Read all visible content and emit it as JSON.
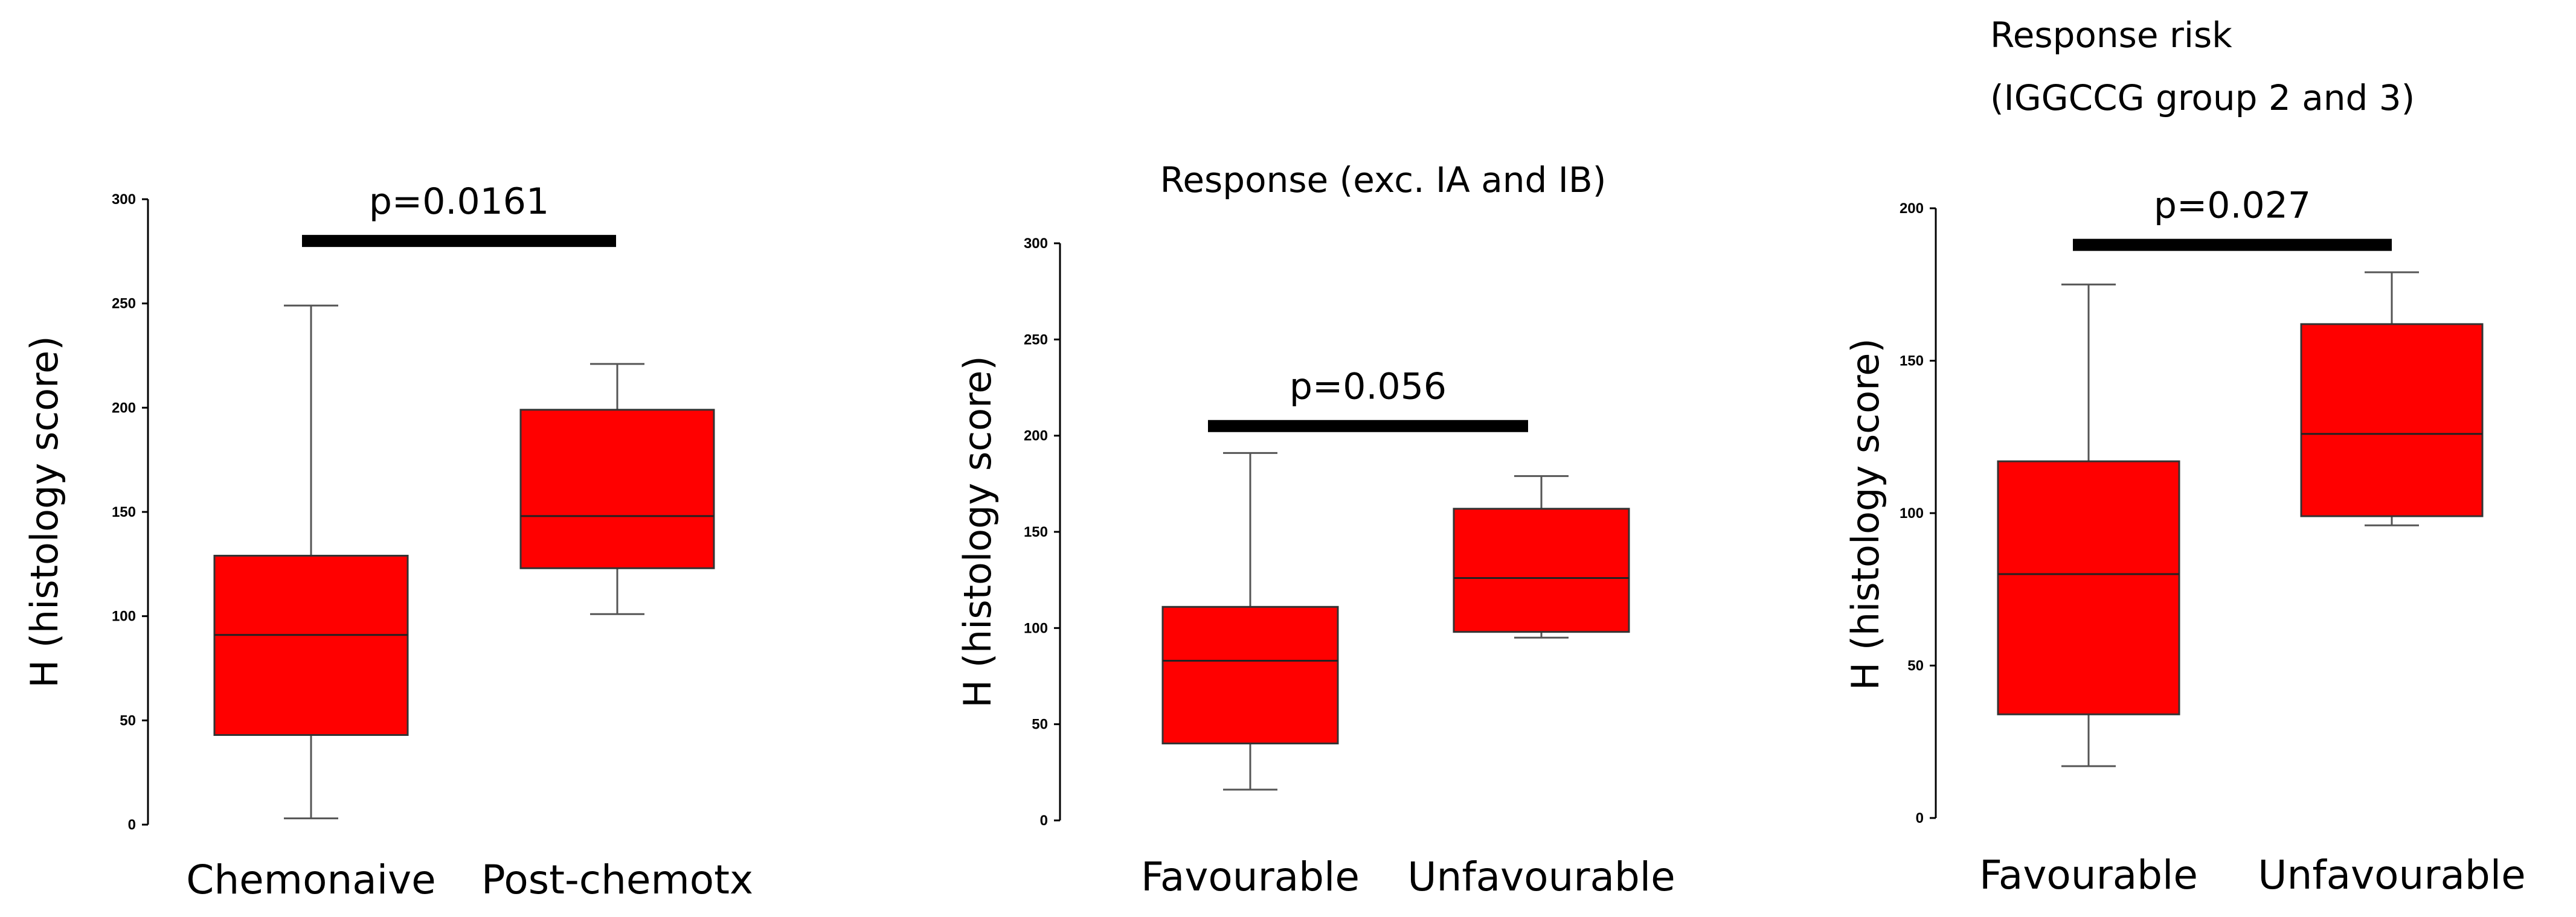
{
  "chart_data": [
    {
      "type": "box",
      "title": "",
      "ylabel": "H (histology score)",
      "ylim": [
        0,
        300
      ],
      "yticks": [
        0,
        50,
        100,
        150,
        200,
        250,
        300
      ],
      "categories": [
        "Chemonaive",
        "Post-chemotx"
      ],
      "boxes": [
        {
          "min": 3,
          "q1": 43,
          "median": 91,
          "q3": 129,
          "max": 249
        },
        {
          "min": 101,
          "q1": 123,
          "median": 148,
          "q3": 199,
          "max": 221
        }
      ],
      "significance": {
        "label": "p=0.0161",
        "level": 280
      },
      "box_color": "#ff0000"
    },
    {
      "type": "box",
      "title": "Response (exc. IA and IB)",
      "ylabel": "H (histology score)",
      "ylim": [
        0,
        300
      ],
      "yticks": [
        0,
        50,
        100,
        150,
        200,
        250,
        300
      ],
      "categories": [
        "Favourable",
        "Unfavourable"
      ],
      "boxes": [
        {
          "min": 16,
          "q1": 40,
          "median": 83,
          "q3": 111,
          "max": 191
        },
        {
          "min": 95,
          "q1": 98,
          "median": 126,
          "q3": 162,
          "max": 179
        }
      ],
      "significance": {
        "label": "p=0.056",
        "level": 205
      },
      "box_color": "#ff0000"
    },
    {
      "type": "box",
      "title": "Response risk\n(IGGCCG group 2 and 3)",
      "ylabel": "H (histology score)",
      "ylim": [
        0,
        200
      ],
      "yticks": [
        0,
        50,
        100,
        150,
        200
      ],
      "categories": [
        "Favourable",
        "Unfavourable"
      ],
      "boxes": [
        {
          "min": 17,
          "q1": 34,
          "median": 80,
          "q3": 117,
          "max": 175
        },
        {
          "min": 96,
          "q1": 99,
          "median": 126,
          "q3": 162,
          "max": 179
        }
      ],
      "significance": {
        "label": "p=0.027",
        "level": 188
      },
      "box_color": "#ff0000"
    }
  ]
}
